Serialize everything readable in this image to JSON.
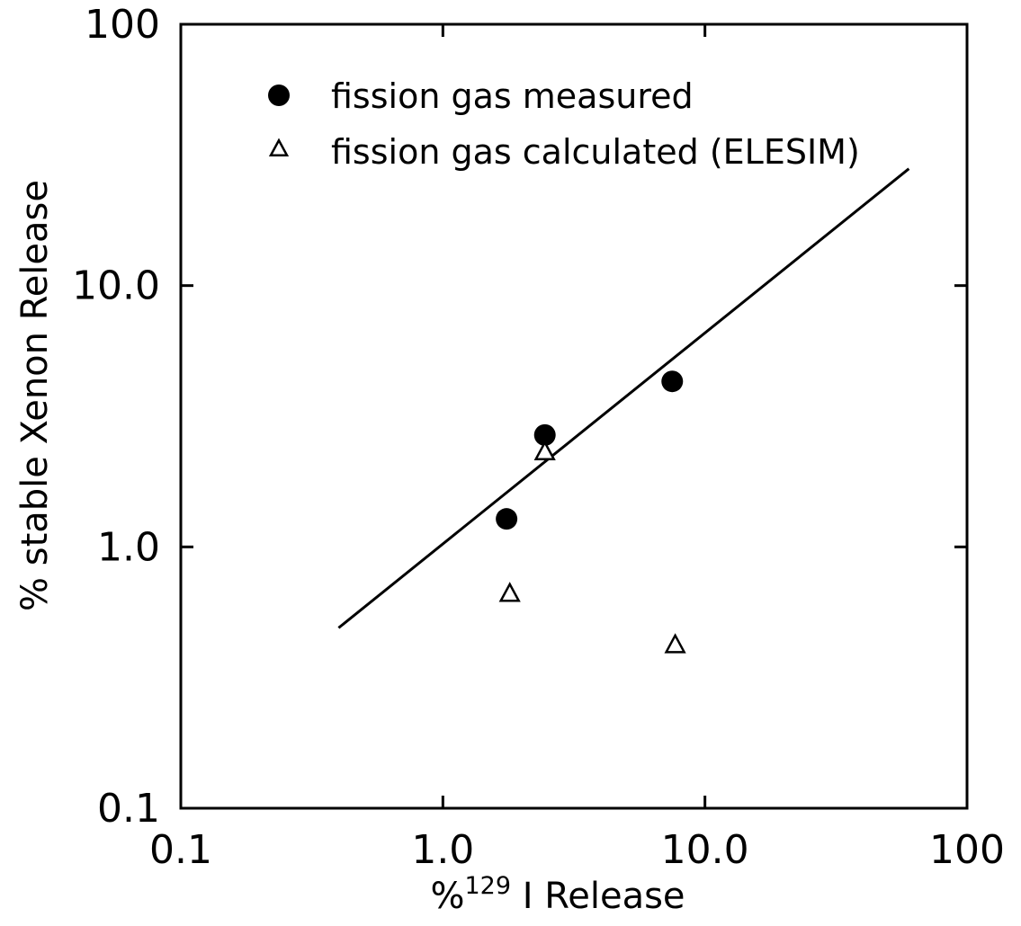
{
  "chart_data": {
    "type": "scatter",
    "title": "",
    "xlabel": {
      "prefix": "%",
      "superscript": "129",
      "suffix": " I Release"
    },
    "ylabel": "% stable Xenon Release",
    "xscale": "log",
    "yscale": "log",
    "xlim": [
      0.1,
      100
    ],
    "ylim": [
      0.1,
      100
    ],
    "x_ticks": [
      0.1,
      1.0,
      10.0,
      100
    ],
    "x_tick_labels": [
      "0.1",
      "1.0",
      "10.0",
      "100"
    ],
    "y_ticks": [
      0.1,
      1.0,
      10.0,
      100
    ],
    "y_tick_labels": [
      "0.1",
      "1.0",
      "10.0",
      "100"
    ],
    "grid": false,
    "legend_position": "top-left",
    "series": [
      {
        "name": "fission gas measured",
        "marker": "filled-circle",
        "color": "#000000",
        "x": [
          1.75,
          2.45,
          7.5
        ],
        "y": [
          1.28,
          2.68,
          4.3
        ]
      },
      {
        "name": "fission gas calculated (ELESIM)",
        "marker": "open-triangle",
        "color": "#000000",
        "x": [
          1.8,
          2.45,
          7.7
        ],
        "y": [
          0.66,
          2.3,
          0.42
        ]
      }
    ],
    "fit_line": {
      "x": [
        0.4,
        60
      ],
      "y": [
        0.49,
        28
      ]
    }
  }
}
